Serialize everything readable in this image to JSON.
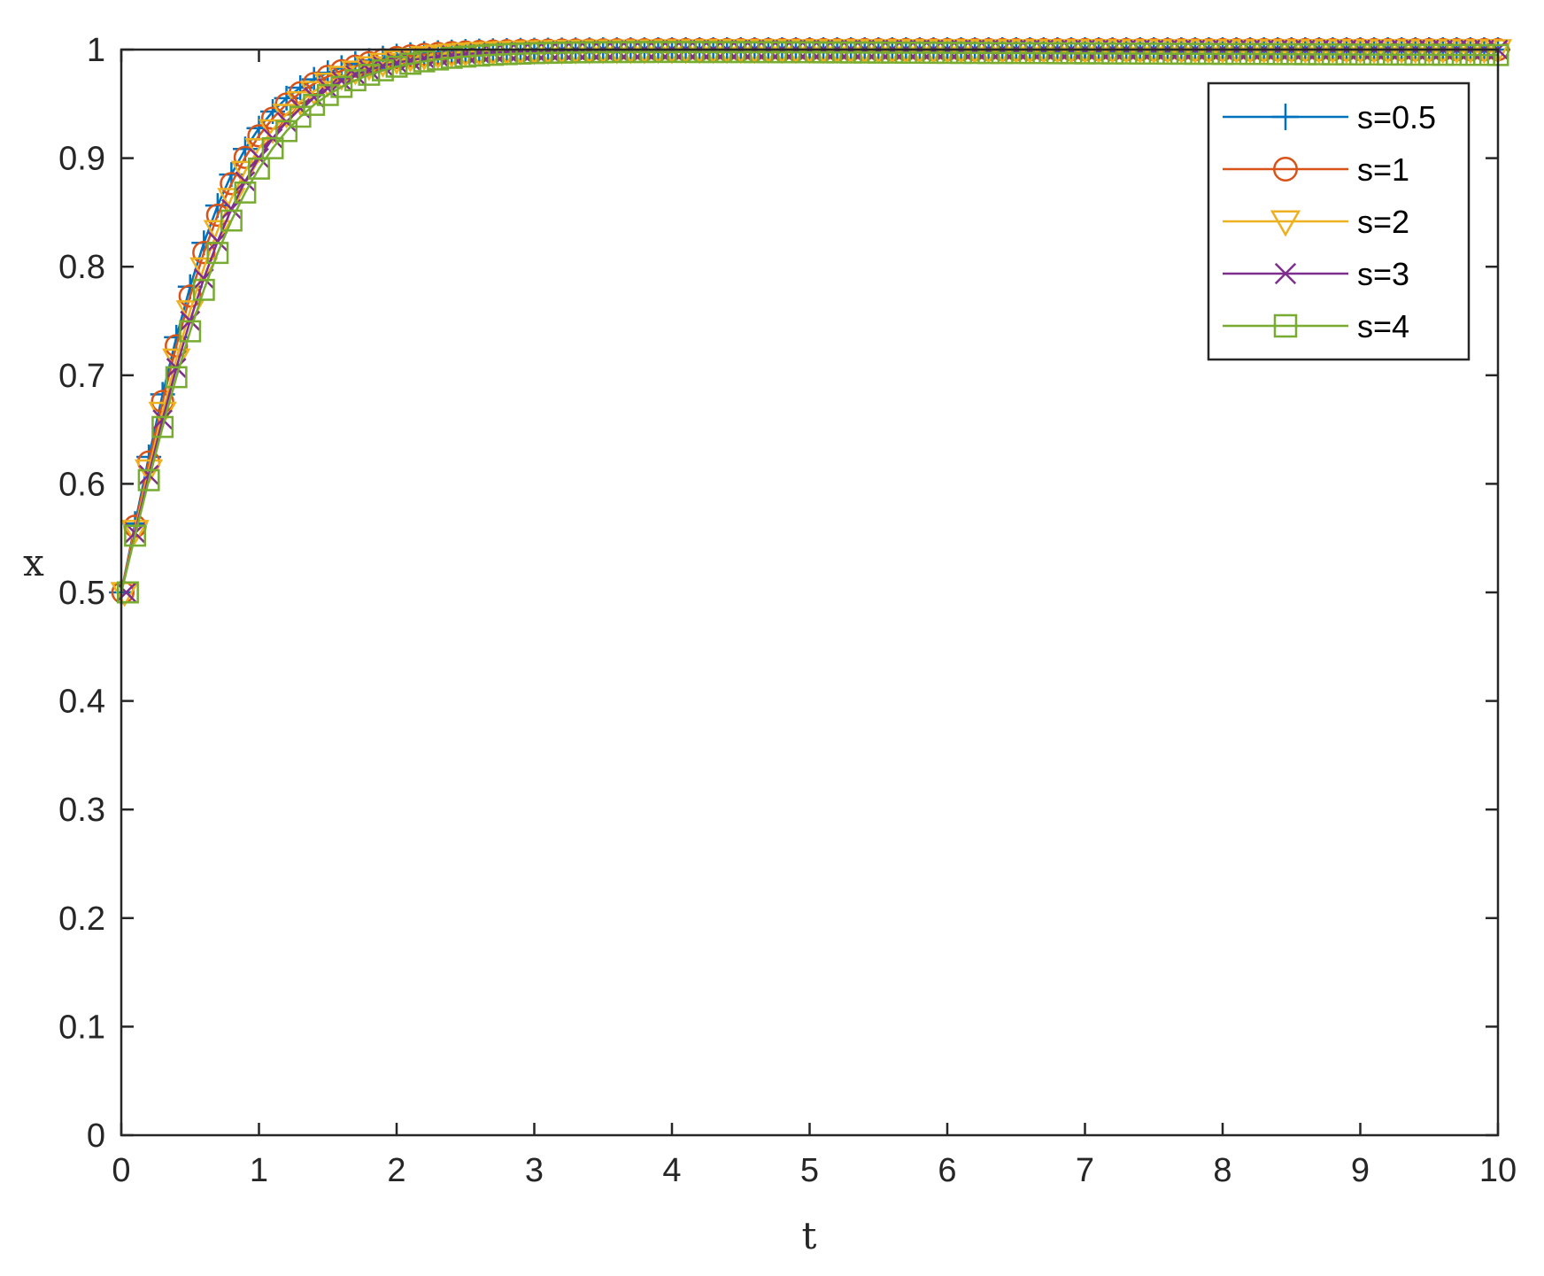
{
  "chart_data": {
    "type": "line",
    "xlabel": "t",
    "ylabel": "x",
    "xlim": [
      0,
      10
    ],
    "ylim": [
      0,
      1
    ],
    "xticks": [
      0,
      1,
      2,
      3,
      4,
      5,
      6,
      7,
      8,
      9,
      10
    ],
    "yticks": [
      0,
      0.1,
      0.2,
      0.3,
      0.4,
      0.5,
      0.6,
      0.7,
      0.8,
      0.9,
      1
    ],
    "grid": false,
    "box": true,
    "legend_position": "top-right",
    "series": [
      {
        "name": "s=0.5",
        "marker": "plus",
        "color": "#0072BD",
        "rate": 2.55,
        "x0": 0.5,
        "end_value": 1.0
      },
      {
        "name": "s=1",
        "marker": "circle",
        "color": "#D95319",
        "rate": 2.45,
        "x0": 0.5,
        "end_value": 1.0
      },
      {
        "name": "s=2",
        "marker": "triangle-down",
        "color": "#EDB120",
        "rate": 2.3,
        "x0": 0.5,
        "end_value": 1.0
      },
      {
        "name": "s=3",
        "marker": "x",
        "color": "#7E2F8E",
        "rate": 2.2,
        "x0": 0.5,
        "end_value": 1.0
      },
      {
        "name": "s=4",
        "marker": "square",
        "color": "#77AC30",
        "rate": 2.1,
        "x0": 0.5,
        "end_value": 0.995
      }
    ]
  }
}
